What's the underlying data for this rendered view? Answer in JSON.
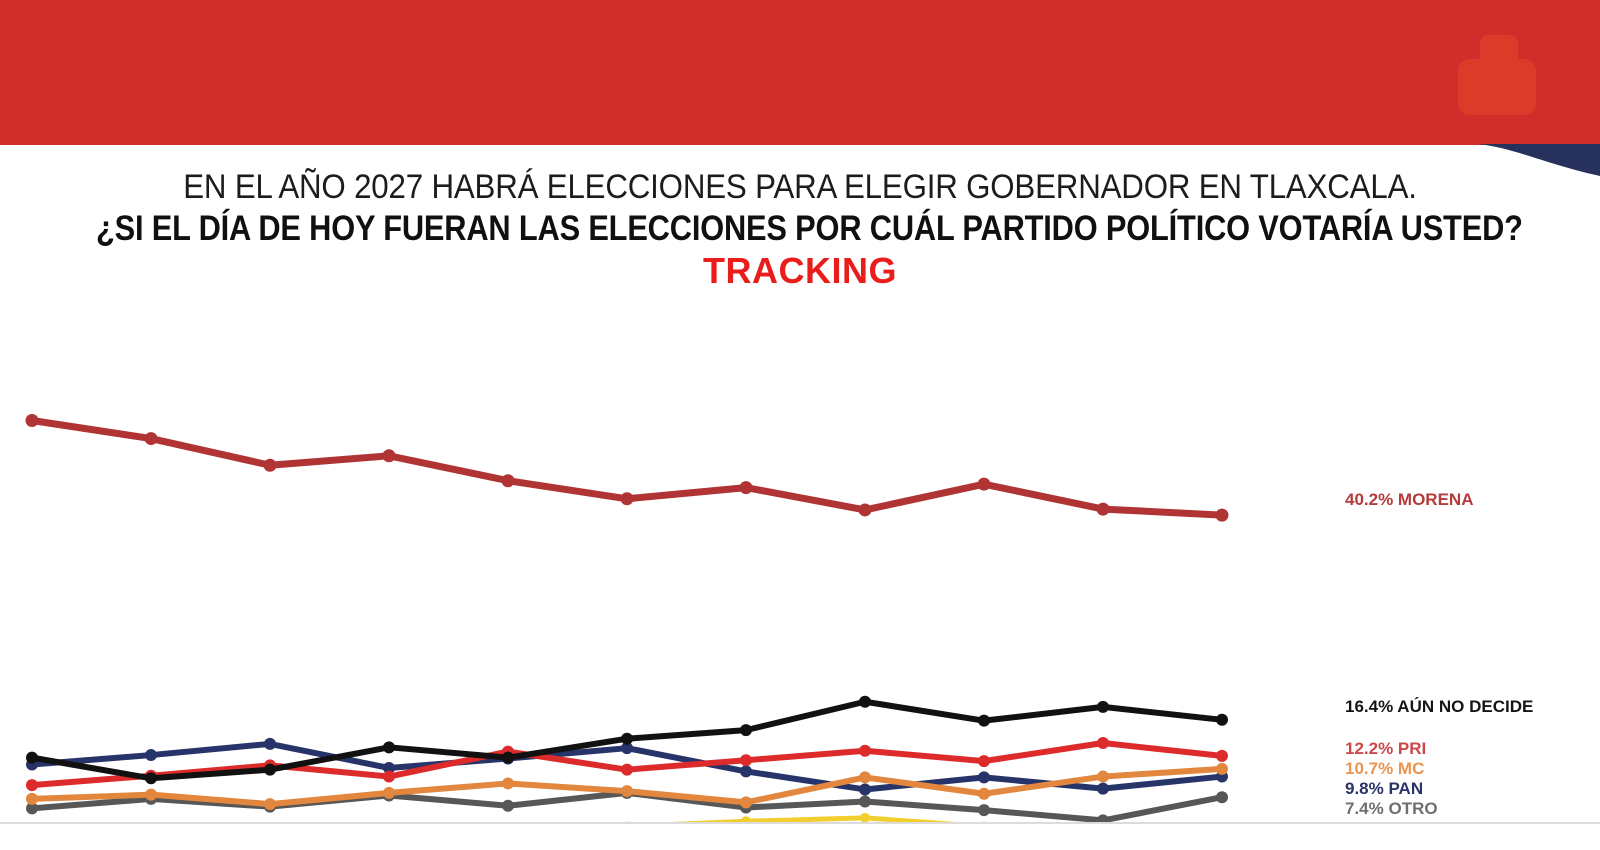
{
  "header": {
    "band_color": "#d02e2b",
    "logo_color": "#dd3b2a",
    "swoosh_color": "#27315e"
  },
  "title": {
    "line1": "EN EL AÑO 2027 HABRÁ ELECCIONES PARA ELEGIR GOBERNADOR EN TLAXCALA.",
    "line2": "¿SI EL DÍA DE HOY FUERAN LAS ELECCIONES POR CUÁL PARTIDO POLÍTICO VOTARÍA USTED?",
    "line3": "TRACKING",
    "tracking_color": "#e91d1b"
  },
  "chart_data": {
    "type": "line",
    "n_points": 11,
    "x_labels": [],
    "ylim": [
      4.4,
      55.9
    ],
    "grid": false,
    "legend_position": "right-of-last-point",
    "baseline_color": "#dcdcdc",
    "draw_order": [
      "partial-yellow",
      "otro",
      "pan",
      "mc",
      "pri",
      "aun-no-decide",
      "morena"
    ],
    "series": [
      {
        "id": "morena",
        "name": "MORENA",
        "label": "40.2% MORENA",
        "final_value": 40.2,
        "color": "#b13435",
        "label_color": "#b43b3c",
        "line_width": 7,
        "dot_radius": 6.5,
        "values": [
          51.2,
          49.1,
          46.0,
          47.1,
          44.2,
          42.1,
          43.4,
          40.8,
          43.8,
          40.9,
          40.2
        ]
      },
      {
        "id": "aun-no-decide",
        "name": "AÚN NO DECIDE",
        "label": "16.4% AÚN NO DECIDE",
        "final_value": 16.4,
        "color": "#111111",
        "label_color": "#161616",
        "line_width": 6,
        "dot_radius": 6,
        "values": [
          12.0,
          9.6,
          10.6,
          13.2,
          12.0,
          14.2,
          15.2,
          18.5,
          16.3,
          17.9,
          16.4
        ]
      },
      {
        "id": "pri",
        "name": "PRI",
        "label": "12.2% PRI",
        "final_value": 12.2,
        "color": "#dd2b2c",
        "label_color": "#cb4849",
        "line_width": 6,
        "dot_radius": 6,
        "values": [
          8.8,
          9.9,
          11.1,
          9.8,
          12.7,
          10.6,
          11.7,
          12.8,
          11.6,
          13.7,
          12.2
        ]
      },
      {
        "id": "mc",
        "name": "MC",
        "label": "10.7% MC",
        "final_value": 10.7,
        "color": "#e2873d",
        "label_color": "#e9944f",
        "line_width": 6,
        "dot_radius": 6,
        "values": [
          7.2,
          7.7,
          6.6,
          7.9,
          9.0,
          8.1,
          6.8,
          9.7,
          7.8,
          9.8,
          10.7
        ]
      },
      {
        "id": "pan",
        "name": "PAN",
        "label": "9.8% PAN",
        "final_value": 9.8,
        "color": "#273469",
        "label_color": "#2b3468",
        "line_width": 6,
        "dot_radius": 6,
        "values": [
          11.2,
          12.3,
          13.6,
          10.8,
          11.9,
          13.1,
          10.4,
          8.3,
          9.7,
          8.4,
          9.8
        ]
      },
      {
        "id": "otro",
        "name": "OTRO",
        "label": "7.4% OTRO",
        "final_value": 7.4,
        "color": "#575757",
        "label_color": "#6f6f6f",
        "line_width": 6,
        "dot_radius": 6,
        "values": [
          6.1,
          7.2,
          6.3,
          7.6,
          6.4,
          7.9,
          6.2,
          6.9,
          5.9,
          4.7,
          7.4
        ]
      },
      {
        "id": "partial-yellow",
        "name": "",
        "label": "",
        "color": "#f2cf2e",
        "label_color": "",
        "line_width": 5,
        "dot_radius": 5,
        "values": [
          null,
          null,
          null,
          null,
          null,
          4.0,
          4.6,
          5.0,
          4.0,
          null,
          null
        ]
      }
    ]
  }
}
